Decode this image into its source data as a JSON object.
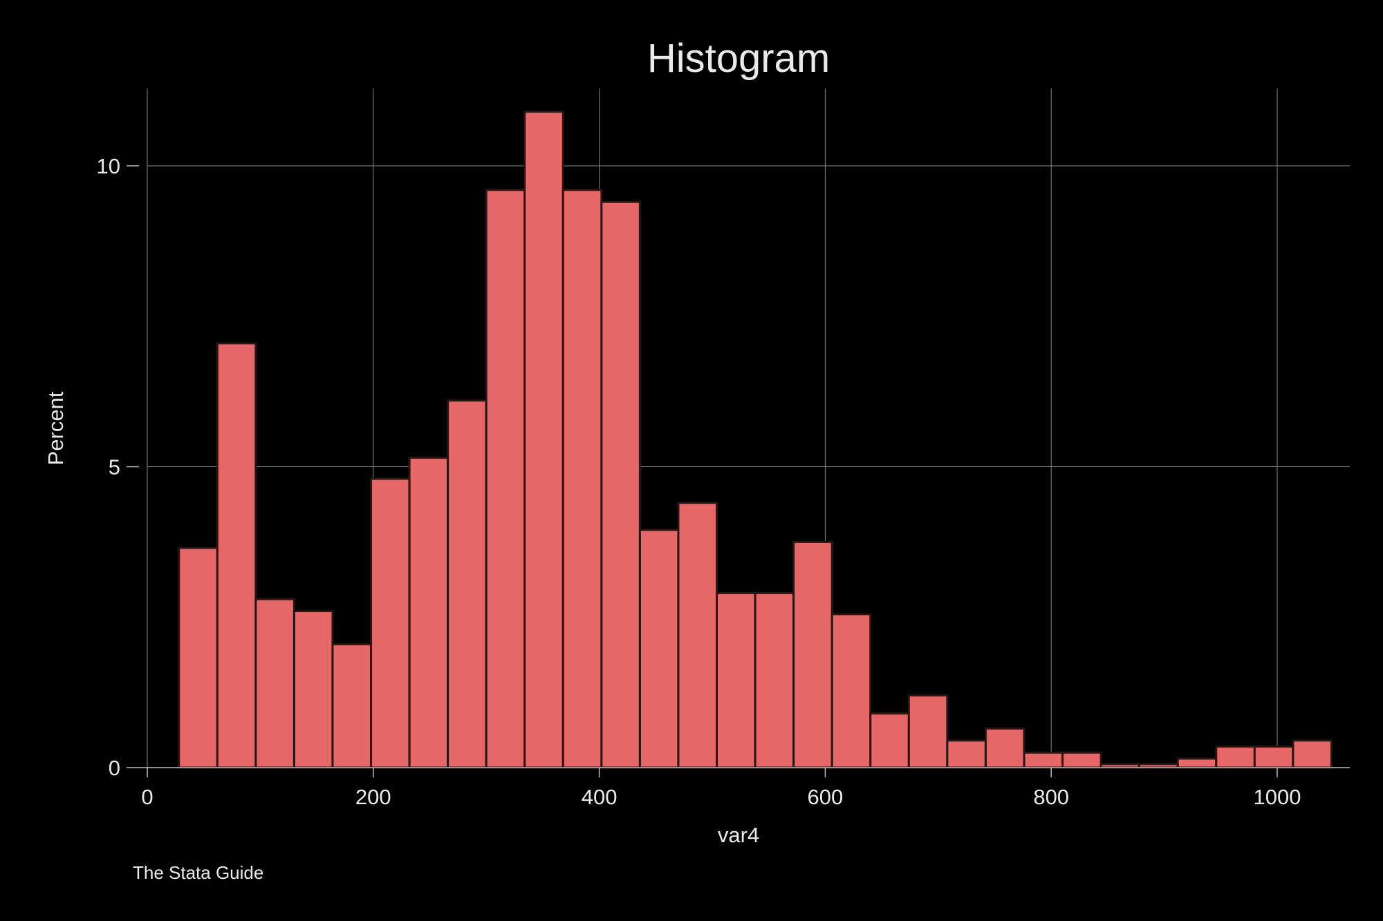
{
  "chart_data": {
    "type": "bar",
    "title": "Histogram",
    "xlabel": "var4",
    "ylabel": "Percent",
    "note": "The Stata Guide",
    "xlim": [
      0,
      1062
    ],
    "ylim": [
      0,
      11.26
    ],
    "x_ticks": [
      0,
      200,
      400,
      600,
      800,
      1000
    ],
    "x_tick_labels": [
      "0",
      "200",
      "400",
      "600",
      "800",
      "1000"
    ],
    "y_ticks": [
      0,
      5,
      10
    ],
    "y_tick_labels": [
      "0",
      "5",
      "10"
    ],
    "grid": true,
    "bin_width": 34,
    "bins_start": [
      28,
      62,
      96,
      130,
      164,
      198,
      232,
      266,
      300,
      334,
      368,
      402,
      436,
      470,
      504,
      538,
      572,
      606,
      640,
      674,
      708,
      742,
      776,
      810,
      844,
      878,
      912,
      946,
      980,
      1014
    ],
    "values": [
      3.65,
      7.05,
      2.8,
      2.6,
      2.05,
      4.8,
      5.15,
      6.1,
      9.6,
      10.9,
      9.6,
      9.4,
      3.95,
      4.4,
      2.9,
      2.9,
      3.75,
      2.55,
      0.9,
      1.2,
      0.45,
      0.65,
      0.25,
      0.25,
      0.06,
      0.06,
      0.15,
      0.35,
      0.35,
      0.45
    ],
    "colors": {
      "background": "#000000",
      "bar_fill": "#e66767",
      "bar_edge": "#2a1414",
      "grid": "#8a8a8a",
      "axis": "#bdbdbd",
      "text": "#eaeaea"
    }
  }
}
